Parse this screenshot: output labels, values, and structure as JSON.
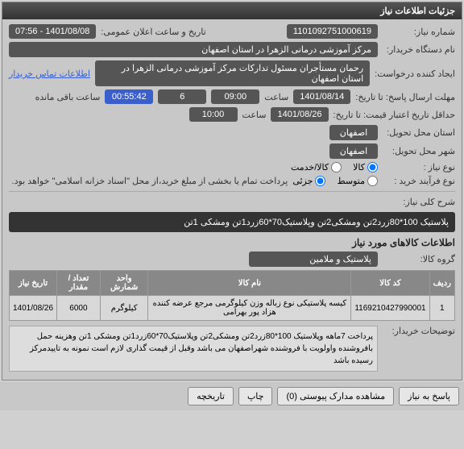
{
  "header": {
    "title": "جزئیات اطلاعات نیاز"
  },
  "fields": {
    "need_number_lbl": "شماره نیاز:",
    "need_number": "1101092751000619",
    "announce_lbl": "تاریخ و ساعت اعلان عمومی:",
    "announce_val": "1401/08/08 - 07:56",
    "buyer_org_lbl": "نام دستگاه خریدار:",
    "buyer_org": "مرکز آموزشی درمانی الزهرا در استان اصفهان",
    "creator_lbl": "ایجاد کننده درخواست:",
    "creator": "رحمان مستأجران مسئول تدارکات مرکز آموزشی درمانی الزهرا در استان اصفهان",
    "contact_link": "اطلاعات تماس خریدار",
    "deadline_lbl": "مهلت ارسال پاسخ: تا تاریخ:",
    "deadline_date": "1401/08/14",
    "time_lbl": "ساعت",
    "deadline_time": "09:00",
    "deadline_count": "6",
    "remaining_timer": "00:55:42",
    "remaining_lbl": "ساعت باقی مانده",
    "price_valid_lbl": "حداقل تاریخ اعتبار قیمت: تا تاریخ:",
    "price_valid_date": "1401/08/26",
    "price_valid_time": "10:00",
    "need_loc_lbl": "استان محل تحویل:",
    "need_loc": "اصفهان",
    "deliver_loc_lbl": "شهر محل تحویل:",
    "deliver_loc": "اصفهان",
    "need_type_lbl": "نوع نیاز :",
    "need_type_opts": {
      "goods": "کالا",
      "service": "کالا/خدمت"
    },
    "need_type_sel": "goods",
    "process_lbl": "نوع فرآیند خرید :",
    "process_opts": {
      "medium": "متوسط",
      "partial": "جزئی"
    },
    "process_sel": "partial",
    "process_note": "پرداخت تمام یا بخشی از مبلغ خرید،از محل \"اسناد خزانه اسلامی\" خواهد بود.",
    "desc_lbl": "شرح کلی نیاز:",
    "desc_val": "پلاستیک 100*80زرد2تن ومشکی2تن وپلاستیک70*60زرد1تن ومشکی 1تن",
    "items_title": "اطلاعات کالاهای مورد نیاز",
    "group_lbl": "گروه کالا:",
    "group_val": "پلاستیک و ملامین"
  },
  "table": {
    "cols": [
      "ردیف",
      "کد کالا",
      "نام کالا",
      "واحد شمارش",
      "تعداد / مقدار",
      "تاریخ نیاز"
    ],
    "rows": [
      [
        "1",
        "1169210427990001",
        "کیسه پلاستیکی نوع زباله وزن کیلوگرمی مرجع عرضه کننده هزاد پور بهرامی",
        "کیلوگرم",
        "6000",
        "1401/08/26"
      ]
    ]
  },
  "buyer_note_lbl": "توضیحات خریدار:",
  "buyer_note": "پرداخت 7ماهه وپلاستیک 100*80زرد2تن ومشکی2تن وپلاستیک70*60زرد1تن ومشکی 1تن وهزینه حمل بافروشنده واولویت با فروشنده شهراصفهان می باشد وقبل از قیمت گذاری لازم است نمونه  به تاییدمرکز  رسیده باشد",
  "footer": {
    "reply": "پاسخ به نیاز",
    "attachments": "مشاهده مدارک پیوستی (0)",
    "print": "چاپ",
    "history": "تاریخچه"
  }
}
